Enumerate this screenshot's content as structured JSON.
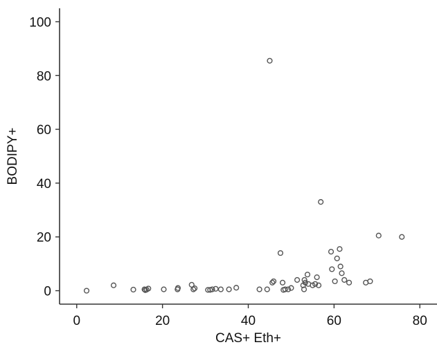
{
  "chart_data": {
    "type": "scatter",
    "xlabel": "CAS+ Eth+",
    "ylabel": "BODIPY+",
    "xlim": [
      -4,
      84
    ],
    "ylim": [
      -5,
      105
    ],
    "xticks": [
      0,
      20,
      40,
      60,
      80
    ],
    "yticks": [
      0,
      20,
      40,
      60,
      80,
      100
    ],
    "grid": false,
    "legend": "none",
    "marker": "open-circle",
    "marker_color": "#555555",
    "series": [
      {
        "points": [
          [
            2.3,
            0.0
          ],
          [
            8.6,
            2.0
          ],
          [
            13.2,
            0.4
          ],
          [
            15.8,
            0.5
          ],
          [
            16.0,
            0.2
          ],
          [
            16.3,
            0.4
          ],
          [
            16.7,
            0.8
          ],
          [
            20.3,
            0.5
          ],
          [
            23.5,
            0.5
          ],
          [
            23.6,
            1.0
          ],
          [
            26.8,
            2.2
          ],
          [
            27.2,
            0.5
          ],
          [
            27.5,
            0.9
          ],
          [
            30.6,
            0.3
          ],
          [
            31.1,
            0.3
          ],
          [
            31.6,
            0.5
          ],
          [
            32.4,
            0.7
          ],
          [
            33.6,
            0.5
          ],
          [
            35.5,
            0.5
          ],
          [
            37.2,
            1.1
          ],
          [
            42.6,
            0.5
          ],
          [
            44.4,
            0.5
          ],
          [
            45.0,
            85.5
          ],
          [
            45.6,
            3.0
          ],
          [
            45.9,
            3.5
          ],
          [
            47.5,
            14.0
          ],
          [
            48.0,
            3.0
          ],
          [
            48.2,
            0.3
          ],
          [
            48.6,
            0.5
          ],
          [
            49.3,
            0.5
          ],
          [
            50.0,
            1.0
          ],
          [
            51.4,
            4.0
          ],
          [
            52.8,
            2.0
          ],
          [
            53.0,
            0.5
          ],
          [
            53.1,
            4.0
          ],
          [
            53.3,
            3.0
          ],
          [
            53.8,
            6.0
          ],
          [
            54.0,
            2.5
          ],
          [
            55.0,
            2.0
          ],
          [
            55.6,
            2.5
          ],
          [
            56.0,
            5.0
          ],
          [
            56.4,
            2.0
          ],
          [
            56.9,
            33.0
          ],
          [
            59.3,
            14.5
          ],
          [
            59.5,
            8.0
          ],
          [
            60.2,
            3.5
          ],
          [
            60.7,
            12.0
          ],
          [
            61.3,
            15.5
          ],
          [
            61.5,
            9.0
          ],
          [
            61.8,
            6.5
          ],
          [
            62.4,
            4.0
          ],
          [
            63.5,
            3.0
          ],
          [
            67.4,
            3.0
          ],
          [
            68.4,
            3.5
          ],
          [
            70.4,
            20.5
          ],
          [
            75.8,
            20.0
          ]
        ]
      }
    ]
  }
}
